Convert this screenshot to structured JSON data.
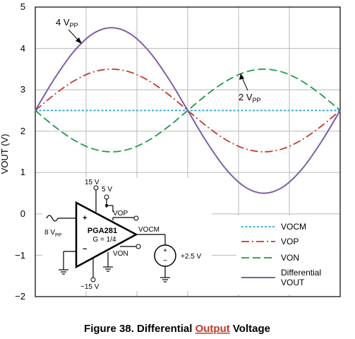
{
  "chart_data": {
    "type": "line",
    "title": "",
    "xlabel": "",
    "ylabel": "VOUT (V)",
    "ylim": [
      -2,
      5
    ],
    "yticks": [
      "5",
      "4",
      "3",
      "2",
      "1",
      "0",
      "−1",
      "−2"
    ],
    "xlim": [
      0,
      1
    ],
    "grid": true,
    "x": [
      0,
      0.0625,
      0.125,
      0.1875,
      0.25,
      0.3125,
      0.375,
      0.4375,
      0.5,
      0.5625,
      0.625,
      0.6875,
      0.75,
      0.8125,
      0.875,
      0.9375,
      1
    ],
    "series": [
      {
        "name": "VOCM",
        "color": "#2aa6dd",
        "dash": "dotted",
        "values": [
          2.5,
          2.5,
          2.5,
          2.5,
          2.5,
          2.5,
          2.5,
          2.5,
          2.5,
          2.5,
          2.5,
          2.5,
          2.5,
          2.5,
          2.5,
          2.5,
          2.5
        ]
      },
      {
        "name": "VOP",
        "color": "#c0392b",
        "dash": "dashdot",
        "values": [
          2.5,
          2.883,
          3.207,
          3.424,
          3.5,
          3.424,
          3.207,
          2.883,
          2.5,
          2.117,
          1.793,
          1.576,
          1.5,
          1.576,
          1.793,
          2.117,
          2.5
        ]
      },
      {
        "name": "VON",
        "color": "#1e9a4a",
        "dash": "dashed",
        "values": [
          2.5,
          2.117,
          1.793,
          1.576,
          1.5,
          1.576,
          1.793,
          2.117,
          2.5,
          2.883,
          3.207,
          3.424,
          3.5,
          3.424,
          3.207,
          2.883,
          2.5
        ]
      },
      {
        "name": "Differential VOUT",
        "color": "#7b5ea7",
        "dash": "solid",
        "values": [
          2.5,
          3.265,
          3.914,
          4.348,
          4.5,
          4.348,
          3.914,
          3.265,
          2.5,
          1.735,
          1.086,
          0.652,
          0.5,
          0.652,
          1.086,
          1.735,
          2.5
        ]
      }
    ],
    "legend": {
      "placement": "bottom-right",
      "entries": [
        "VOCM",
        "VOP",
        "VON",
        "Differential",
        "VOUT"
      ]
    },
    "annotations": [
      {
        "text": "4 V",
        "sub": "PP"
      },
      {
        "text": "2 V",
        "sub": "PP"
      }
    ]
  },
  "schematic": {
    "supply_top": "15 V",
    "supply_logic": "5 V",
    "input_source": "8 V",
    "input_source_sub": "PP",
    "plus": "+",
    "minus": "−",
    "part": "PGA281",
    "gain": "G = 1/4",
    "vop": "VOP",
    "vocm": "VOCM",
    "von": "VON",
    "supply_bottom": "−15 V",
    "ref_source": "+2.5 V"
  },
  "caption": {
    "before": "Figure 38.  Differential ",
    "highlight": "Output",
    "after": " Voltage"
  }
}
